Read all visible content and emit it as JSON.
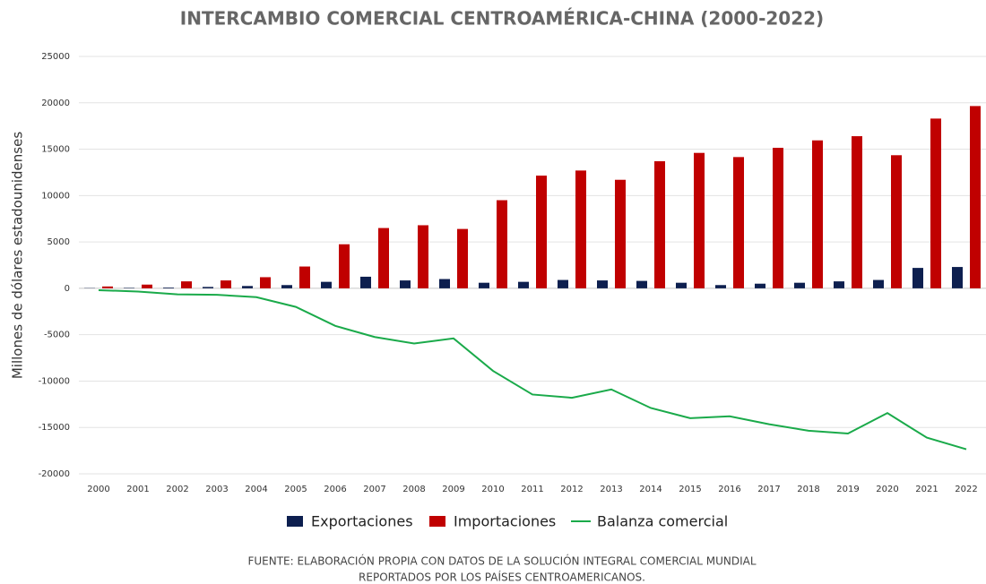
{
  "chart_data": {
    "type": "bar",
    "title": "INTERCAMBIO COMERCIAL CENTROAMÉRICA-CHINA (2000-2022)",
    "y_label": "Millones de dólares estadounidenses",
    "source": [
      "FUENTE: ELABORACIÓN PROPIA CON DATOS DE LA SOLUCIÓN INTEGRAL COMERCIAL MUNDIAL",
      "REPORTADOS POR LOS PAÍSES CENTROAMERICANOS."
    ],
    "categories": [
      "2000",
      "2001",
      "2002",
      "2003",
      "2004",
      "2005",
      "2006",
      "2007",
      "2008",
      "2009",
      "2010",
      "2011",
      "2012",
      "2013",
      "2014",
      "2015",
      "2016",
      "2017",
      "2018",
      "2019",
      "2020",
      "2021",
      "2022"
    ],
    "series": [
      {
        "name": "Exportaciones",
        "color": "#0d1f4f",
        "type": "bar",
        "values": [
          30,
          50,
          80,
          150,
          250,
          350,
          700,
          1250,
          850,
          1000,
          600,
          700,
          900,
          850,
          800,
          600,
          350,
          500,
          600,
          750,
          900,
          2200,
          2300
        ]
      },
      {
        "name": "Importaciones",
        "color": "#c00000",
        "type": "bar",
        "values": [
          200,
          400,
          750,
          850,
          1200,
          2350,
          4750,
          6500,
          6800,
          6400,
          9500,
          12150,
          12700,
          11700,
          13700,
          14600,
          14150,
          15150,
          15950,
          16400,
          14350,
          18300,
          19650
        ]
      },
      {
        "name": "Balanza comercial",
        "color": "#1aaa4a",
        "type": "line",
        "values": [
          -200,
          -350,
          -650,
          -700,
          -950,
          -2000,
          -4050,
          -5250,
          -5950,
          -5400,
          -8900,
          -11450,
          -11800,
          -10900,
          -12900,
          -14000,
          -13800,
          -14650,
          -15350,
          -15650,
          -13450,
          -16100,
          -17350
        ]
      }
    ],
    "ylim": [
      -20000,
      25000
    ],
    "yticks": [
      -20000,
      -15000,
      -10000,
      -5000,
      0,
      5000,
      10000,
      15000,
      20000,
      25000
    ],
    "grid": true,
    "legend": "bottom"
  }
}
